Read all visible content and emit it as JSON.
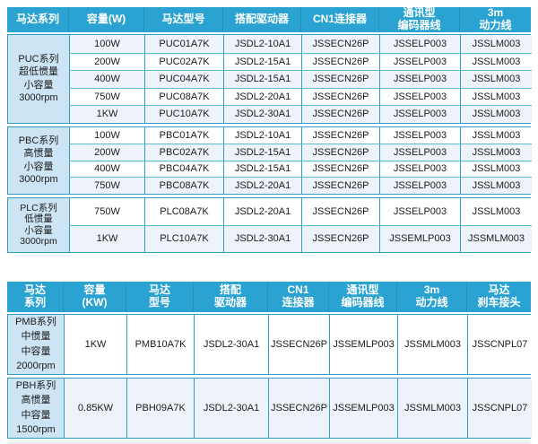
{
  "palette": {
    "header_bg": "#2BA3D2",
    "series_bg": "#CDE4F4",
    "row_tint": "#EEF3F9",
    "border_v": "#2E9EC4",
    "border_h": "#5ABFCC"
  },
  "table1": {
    "headers": [
      "马达系列",
      "容量(W)",
      "马达型号",
      "搭配驱动器",
      "CN1连接器",
      "通讯型\n编码器线",
      "3m\n动力线"
    ],
    "groups": [
      {
        "series": "PUC系列\n超低惯量\n小容量\n3000rpm",
        "rows": [
          [
            "100W",
            "PUC01A7K",
            "JSDL2-10A1",
            "JSSECN26P",
            "JSSELP003",
            "JSSLM003"
          ],
          [
            "200W",
            "PUC02A7K",
            "JSDL2-15A1",
            "JSSECN26P",
            "JSSELP003",
            "JSSLM003"
          ],
          [
            "400W",
            "PUC04A7K",
            "JSDL2-15A1",
            "JSSECN26P",
            "JSSELP003",
            "JSSLM003"
          ],
          [
            "750W",
            "PUC08A7K",
            "JSDL2-20A1",
            "JSSECN26P",
            "JSSELP003",
            "JSSLM003"
          ],
          [
            "1KW",
            "PUC10A7K",
            "JSDL2-30A1",
            "JSSECN26P",
            "JSSELP003",
            "JSSLM003"
          ]
        ]
      },
      {
        "series": "PBC系列\n高惯量\n小容量\n3000rpm",
        "rows": [
          [
            "100W",
            "PBC01A7K",
            "JSDL2-10A1",
            "JSSECN26P",
            "JSSELP003",
            "JSSLM003"
          ],
          [
            "200W",
            "PBC02A7K",
            "JSDL2-15A1",
            "JSSECN26P",
            "JSSELP003",
            "JSSLM003"
          ],
          [
            "400W",
            "PBC04A7K",
            "JSDL2-15A1",
            "JSSECN26P",
            "JSSELP003",
            "JSSLM003"
          ],
          [
            "750W",
            "PBC08A7K",
            "JSDL2-20A1",
            "JSSECN26P",
            "JSSELP003",
            "JSSLM003"
          ]
        ]
      },
      {
        "series": "PLC系列\n低惯量\n小容量\n3000rpm",
        "rows": [
          [
            "750W",
            "PLC08A7K",
            "JSDL2-20A1",
            "JSSECN26P",
            "JSSELP003",
            "JSSLM003"
          ],
          [
            "1KW",
            "PLC10A7K",
            "JSDL2-30A1",
            "JSSECN26P",
            "JSSEMLP003",
            "JSSMLM003"
          ]
        ]
      }
    ]
  },
  "table2": {
    "headers": [
      "马达\n系列",
      "容量\n(KW)",
      "马达\n型号",
      "搭配\n驱动器",
      "CN1\n连接器",
      "通讯型\n编码器线",
      "3m\n动力线",
      "马达\n刹车接头"
    ],
    "groups": [
      {
        "series": "PMB系列\n中惯量\n中容量\n2000rpm",
        "rows": [
          [
            "1KW",
            "PMB10A7K",
            "JSDL2-30A1",
            "JSSECN26P",
            "JSSEMLP003",
            "JSSMLM003",
            "JSSCNPL07"
          ]
        ]
      },
      {
        "series": "PBH系列\n高惯量\n中容量\n1500rpm",
        "rows": [
          [
            "0.85KW",
            "PBH09A7K",
            "JSDL2-30A1",
            "JSSECN26P",
            "JSSEMLP003",
            "JSSMLM003",
            "JSSCNPL07"
          ]
        ]
      }
    ]
  }
}
